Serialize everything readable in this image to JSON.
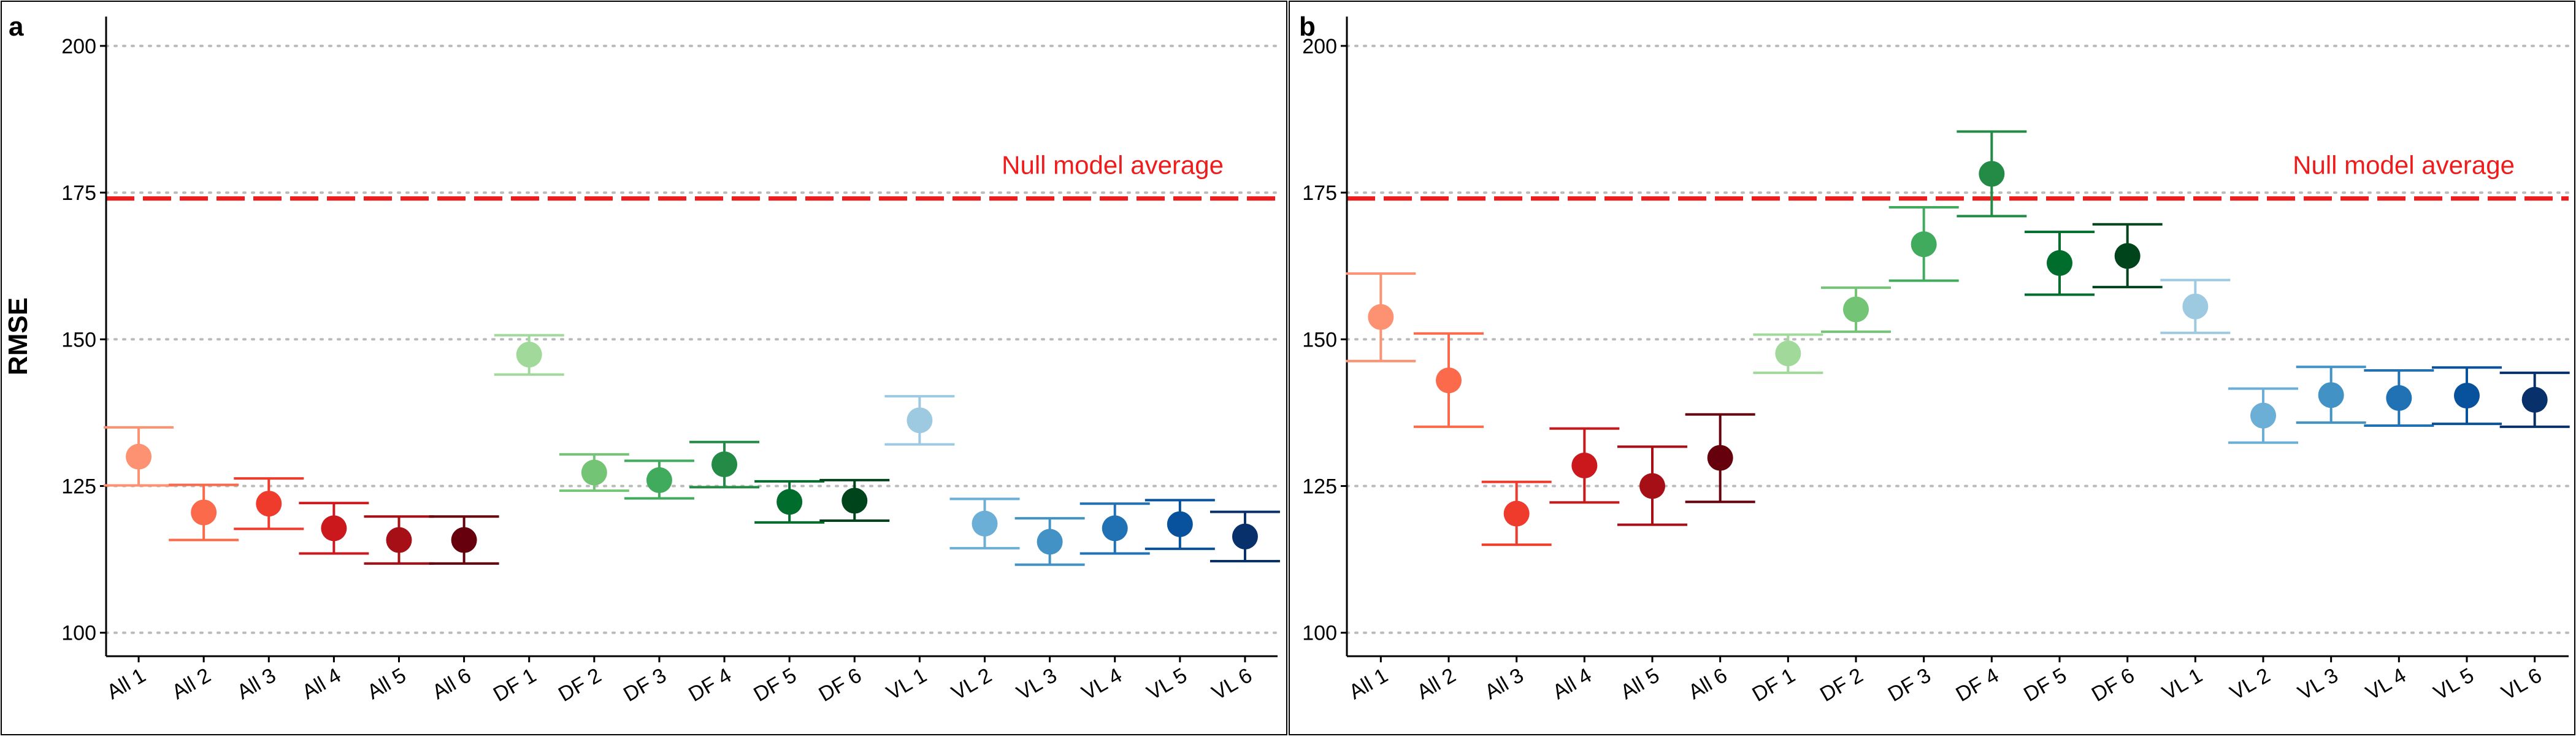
{
  "chart_data": [
    {
      "type": "scatter",
      "panel_label": "a",
      "ylabel": "RMSE",
      "ylim": [
        96,
        205
      ],
      "yticks": [
        100,
        125,
        150,
        175,
        200
      ],
      "grid": "horizontal-dotted",
      "categories": [
        "All 1",
        "All 2",
        "All 3",
        "All 4",
        "All 5",
        "All 6",
        "DF 1",
        "DF 2",
        "DF 3",
        "DF 4",
        "DF 5",
        "DF 6",
        "VL 1",
        "VL 2",
        "VL 3",
        "VL 4",
        "VL 5",
        "VL 6"
      ],
      "values": [
        130,
        120.5,
        122,
        117.8,
        115.8,
        115.8,
        147.4,
        127.3,
        126,
        128.7,
        122.3,
        122.5,
        136.2,
        118.6,
        115.5,
        117.8,
        118.5,
        116.4
      ],
      "lower": [
        125.1,
        115.8,
        117.7,
        113.5,
        111.8,
        111.8,
        144,
        124.2,
        122.9,
        124.8,
        118.8,
        119.1,
        132.1,
        114.4,
        111.6,
        113.5,
        114.3,
        112.2
      ],
      "upper": [
        135,
        125.2,
        126.3,
        122.1,
        119.8,
        119.8,
        150.7,
        130.4,
        129.3,
        132.5,
        125.8,
        126,
        140.3,
        122.8,
        119.5,
        122,
        122.6,
        120.6
      ],
      "reference_line": {
        "label": "Null model average",
        "value": 174
      }
    },
    {
      "type": "scatter",
      "panel_label": "b",
      "ylabel": "",
      "ylim": [
        96,
        205
      ],
      "yticks": [
        100,
        125,
        150,
        175,
        200
      ],
      "grid": "horizontal-dotted",
      "categories": [
        "All 1",
        "All 2",
        "All 3",
        "All 4",
        "All 5",
        "All 6",
        "DF 1",
        "DF 2",
        "DF 3",
        "DF 4",
        "DF 5",
        "DF 6",
        "VL 1",
        "VL 2",
        "VL 3",
        "VL 4",
        "VL 5",
        "VL 6"
      ],
      "values": [
        153.8,
        143,
        120.3,
        128.5,
        125,
        129.8,
        147.6,
        155.1,
        166.2,
        178.2,
        163,
        164.2,
        155.6,
        137,
        140.5,
        140,
        140.4,
        139.7
      ],
      "lower": [
        146.3,
        135.1,
        115,
        122.2,
        118.4,
        122.3,
        144.3,
        151.3,
        160,
        171,
        157.6,
        158.9,
        151.1,
        132.4,
        135.8,
        135.3,
        135.6,
        135.1
      ],
      "upper": [
        161.2,
        151,
        125.7,
        134.8,
        131.7,
        137.2,
        150.8,
        158.8,
        172.5,
        185.4,
        168.3,
        169.6,
        160.1,
        141.6,
        145.3,
        144.7,
        145.2,
        144.3
      ],
      "reference_line": {
        "label": "Null model average",
        "value": 174
      }
    }
  ],
  "colors": {
    "series": [
      "#FC9272",
      "#FB6A4A",
      "#EF3B2C",
      "#CB181D",
      "#A50F15",
      "#67000D",
      "#A1D99B",
      "#74C476",
      "#41AB5D",
      "#238B45",
      "#006D2C",
      "#00441B",
      "#9ECAE1",
      "#6BAED6",
      "#4292C6",
      "#2171B5",
      "#08519C",
      "#08306B"
    ],
    "reference_line": "#EE1C1C",
    "grid": "#BBBBBB",
    "axis": "#000000"
  }
}
